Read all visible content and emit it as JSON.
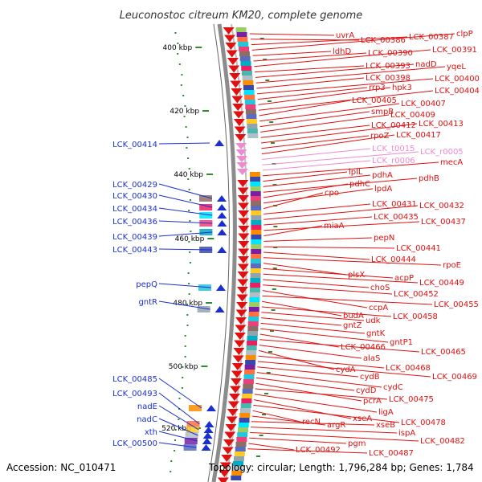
{
  "title": "Leuconostoc citreum KM20, complete genome",
  "footer": {
    "accession": "Accession: NC_010471",
    "summary": "Topology: circular; Length: 1,796,284 bp; Genes: 1,784"
  },
  "colors": {
    "forward_label": "#1a2fd0",
    "reverse_label": "#e01010",
    "rna_label": "#f08ad0",
    "tick": "#2d8a2d",
    "backbone": "#8c8c8c"
  },
  "kbp_ticks": [
    "400 kbp",
    "420 kbp",
    "440 kbp",
    "460 kbp",
    "480 kbp",
    "500 kbp",
    "520 kbp"
  ],
  "forward_labels": [
    "LCK_00414",
    "LCK_00429",
    "LCK_00430",
    "LCK_00434",
    "LCK_00436",
    "LCK_00439",
    "LCK_00443",
    "pepQ",
    "gntR",
    "LCK_00485",
    "LCK_00493",
    "nadE",
    "nadC",
    "xth",
    "LCK_00500"
  ],
  "reverse_labels": [
    "uvrA",
    "LCK_00386",
    "LCK_00387",
    "clpP",
    "ldhD",
    "LCK_00390",
    "LCK_00391",
    "LCK_00393",
    "nadD",
    "yqeL",
    "LCK_00398",
    "LCK_00400",
    "rrp3",
    "hpk3",
    "LCK_00404",
    "LCK_00405",
    "LCK_00407",
    "smpB",
    "LCK_00409",
    "LCK_00412",
    "LCK_00413",
    "rpoZ",
    "LCK_00417",
    "LCK_t0015",
    "LCK_r0005",
    "LCK_r0006",
    "mecA",
    "lplL",
    "pdhA",
    "pdhB",
    "pdhC",
    "lpdA",
    "cpo",
    "LCK_00431",
    "LCK_00432",
    "LCK_00435",
    "LCK_00437",
    "miaA",
    "pepN",
    "LCK_00441",
    "LCK_00444",
    "rpoE",
    "plsX",
    "acpP",
    "LCK_00449",
    "choS",
    "LCK_00452",
    "LCK_00455",
    "ccpA",
    "budA",
    "LCK_00458",
    "udk",
    "gntZ",
    "gntK",
    "gntP1",
    "LCK_00466",
    "LCK_00465",
    "alaS",
    "cydA",
    "LCK_00468",
    "LCK_00469",
    "cydB",
    "cydC",
    "cydD",
    "pcrA",
    "LCK_00475",
    "ligA",
    "xseA",
    "recN",
    "argR",
    "xseB",
    "LCK_00478",
    "ispA",
    "LCK_00482",
    "pgm",
    "LCK_00492",
    "LCK_00487"
  ],
  "rna_labels": [
    "LCK_t0015",
    "LCK_r0005",
    "LCK_r0006"
  ]
}
